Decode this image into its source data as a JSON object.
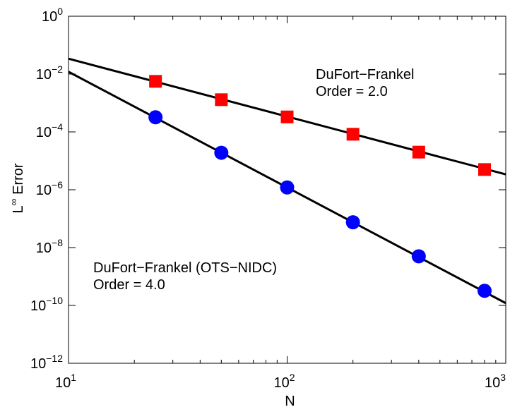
{
  "chart_data": {
    "type": "line",
    "scale": {
      "x": "log10",
      "y": "log10"
    },
    "xlabel": "N",
    "ylabel": {
      "base": "L",
      "superscript": "∞",
      "text": " Error"
    },
    "xlim": [
      10,
      1000
    ],
    "ylim": [
      1e-12,
      1
    ],
    "x_ticks": [
      {
        "value": 10,
        "base": "10",
        "exp": "1"
      },
      {
        "value": 100,
        "base": "10",
        "exp": "2"
      },
      {
        "value": 1000,
        "base": "10",
        "exp": "3"
      }
    ],
    "y_ticks": [
      {
        "value": 1e-12,
        "base": "10",
        "exp": "−12"
      },
      {
        "value": 1e-10,
        "base": "10",
        "exp": "−10"
      },
      {
        "value": 1e-08,
        "base": "10",
        "exp": "−8"
      },
      {
        "value": 1e-06,
        "base": "10",
        "exp": "−6"
      },
      {
        "value": 0.0001,
        "base": "10",
        "exp": "−4"
      },
      {
        "value": 0.01,
        "base": "10",
        "exp": "−2"
      },
      {
        "value": 1,
        "base": "10",
        "exp": "0"
      }
    ],
    "series": [
      {
        "name": "DuFort-Frankel",
        "marker": "square",
        "color": "#ff0000",
        "x": [
          25,
          50,
          100,
          200,
          400,
          800
        ],
        "y": [
          0.0056,
          0.0013,
          0.00033,
          8.3e-05,
          2e-05,
          5e-06
        ],
        "fit": {
          "order": 2.0,
          "x": [
            10,
            1000
          ],
          "y": [
            0.034,
            3.4e-06
          ]
        }
      },
      {
        "name": "DuFort-Frankel (OTS-NIDC)",
        "marker": "circle",
        "color": "#0000ff",
        "x": [
          25,
          50,
          100,
          200,
          400,
          800
        ],
        "y": [
          0.00032,
          1.9e-05,
          1.2e-06,
          7.5e-08,
          5e-09,
          3.2e-10
        ],
        "fit": {
          "order": 4.0,
          "x": [
            10,
            1000
          ],
          "y": [
            0.012,
            1.2e-10
          ]
        }
      }
    ],
    "annotations": [
      {
        "lines": [
          "DuFort−Frankel",
          "Order = 2.0"
        ],
        "anchor": "upper-right"
      },
      {
        "lines": [
          "DuFort−Frankel (OTS−NIDC)",
          "Order = 4.0"
        ],
        "anchor": "lower-left"
      }
    ]
  }
}
